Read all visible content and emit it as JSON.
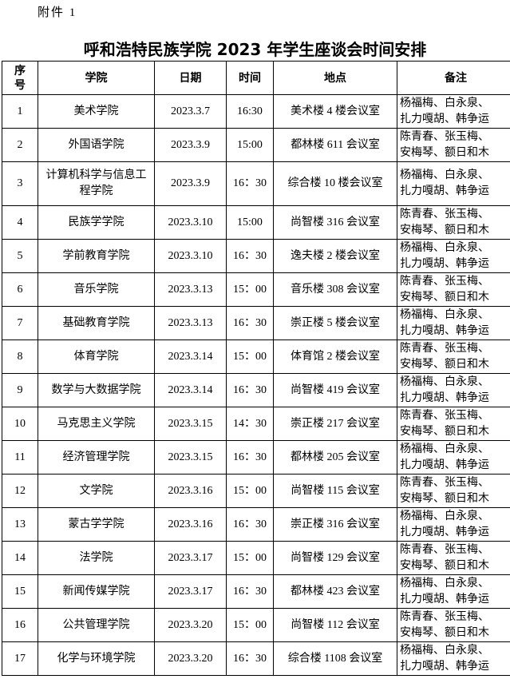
{
  "attachment_label": "附件 1",
  "title": "呼和浩特民族学院 2023 年学生座谈会时间安排",
  "table": {
    "headers": [
      "序号",
      "学院",
      "日期",
      "时间",
      "地点",
      "备注"
    ],
    "rows": [
      {
        "no": "1",
        "college": "美术学院",
        "date": "2023.3.7",
        "time": "16:30",
        "place": "美术楼 4 楼会议室",
        "note1": "杨福梅、白永泉、",
        "note2": "扎力嘎胡、韩争运"
      },
      {
        "no": "2",
        "college": "外国语学院",
        "date": "2023.3.9",
        "time": "15:00",
        "place": "都林楼 611 会议室",
        "note1": "陈青春、张玉梅、",
        "note2": "安梅琴、额日和木"
      },
      {
        "no": "3",
        "college": "计算机科学与信息工程学院",
        "date": "2023.3.9",
        "time": "16：30",
        "place": "综合楼 10 楼会议室",
        "note1": "杨福梅、白永泉、",
        "note2": "扎力嘎胡、韩争运"
      },
      {
        "no": "4",
        "college": "民族学学院",
        "date": "2023.3.10",
        "time": "15:00",
        "place": "尚智楼 316 会议室",
        "note1": "陈青春、张玉梅、",
        "note2": "安梅琴、额日和木"
      },
      {
        "no": "5",
        "college": "学前教育学院",
        "date": "2023.3.10",
        "time": "16：30",
        "place": "逸夫楼 2 楼会议室",
        "note1": "杨福梅、白永泉、",
        "note2": "扎力嘎胡、韩争运"
      },
      {
        "no": "6",
        "college": "音乐学院",
        "date": "2023.3.13",
        "time": "15：00",
        "place": "音乐楼 308 会议室",
        "note1": "陈青春、张玉梅、",
        "note2": "安梅琴、额日和木"
      },
      {
        "no": "7",
        "college": "基础教育学院",
        "date": "2023.3.13",
        "time": "16：30",
        "place": "崇正楼 5 楼会议室",
        "note1": "杨福梅、白永泉、",
        "note2": "扎力嘎胡、韩争运"
      },
      {
        "no": "8",
        "college": "体育学院",
        "date": "2023.3.14",
        "time": "15：00",
        "place": "体育馆 2 楼会议室",
        "note1": "陈青春、张玉梅、",
        "note2": "安梅琴、额日和木"
      },
      {
        "no": "9",
        "college": "数学与大数据学院",
        "date": "2023.3.14",
        "time": "16：30",
        "place": "尚智楼 419 会议室",
        "note1": "杨福梅、白永泉、",
        "note2": "扎力嘎胡、韩争运"
      },
      {
        "no": "10",
        "college": "马克思主义学院",
        "date": "2023.3.15",
        "time": "14：30",
        "place": "崇正楼 217 会议室",
        "note1": "陈青春、张玉梅、",
        "note2": "安梅琴、额日和木"
      },
      {
        "no": "11",
        "college": "经济管理学院",
        "date": "2023.3.15",
        "time": "16：30",
        "place": "都林楼 205 会议室",
        "note1": "杨福梅、白永泉、",
        "note2": "扎力嘎胡、韩争运"
      },
      {
        "no": "12",
        "college": "文学院",
        "date": "2023.3.16",
        "time": "15：00",
        "place": "尚智楼 115 会议室",
        "note1": "陈青春、张玉梅、",
        "note2": "安梅琴、额日和木"
      },
      {
        "no": "13",
        "college": "蒙古学学院",
        "date": "2023.3.16",
        "time": "16：30",
        "place": "崇正楼 316 会议室",
        "note1": "杨福梅、白永泉、",
        "note2": "扎力嘎胡、韩争运"
      },
      {
        "no": "14",
        "college": "法学院",
        "date": "2023.3.17",
        "time": "15：00",
        "place": "尚智楼 129 会议室",
        "note1": "陈青春、张玉梅、",
        "note2": "安梅琴、额日和木"
      },
      {
        "no": "15",
        "college": "新闻传媒学院",
        "date": "2023.3.17",
        "time": "16：30",
        "place": "都林楼 423 会议室",
        "note1": "杨福梅、白永泉、",
        "note2": "扎力嘎胡、韩争运"
      },
      {
        "no": "16",
        "college": "公共管理学院",
        "date": "2023.3.20",
        "time": "15：00",
        "place": "尚智楼 112 会议室",
        "note1": "陈青春、张玉梅、",
        "note2": "安梅琴、额日和木"
      },
      {
        "no": "17",
        "college": "化学与环境学院",
        "date": "2023.3.20",
        "time": "16：30",
        "place": "综合楼 1108 会议室",
        "note1": "杨福梅、白永泉、",
        "note2": "扎力嘎胡、韩争运"
      }
    ]
  }
}
